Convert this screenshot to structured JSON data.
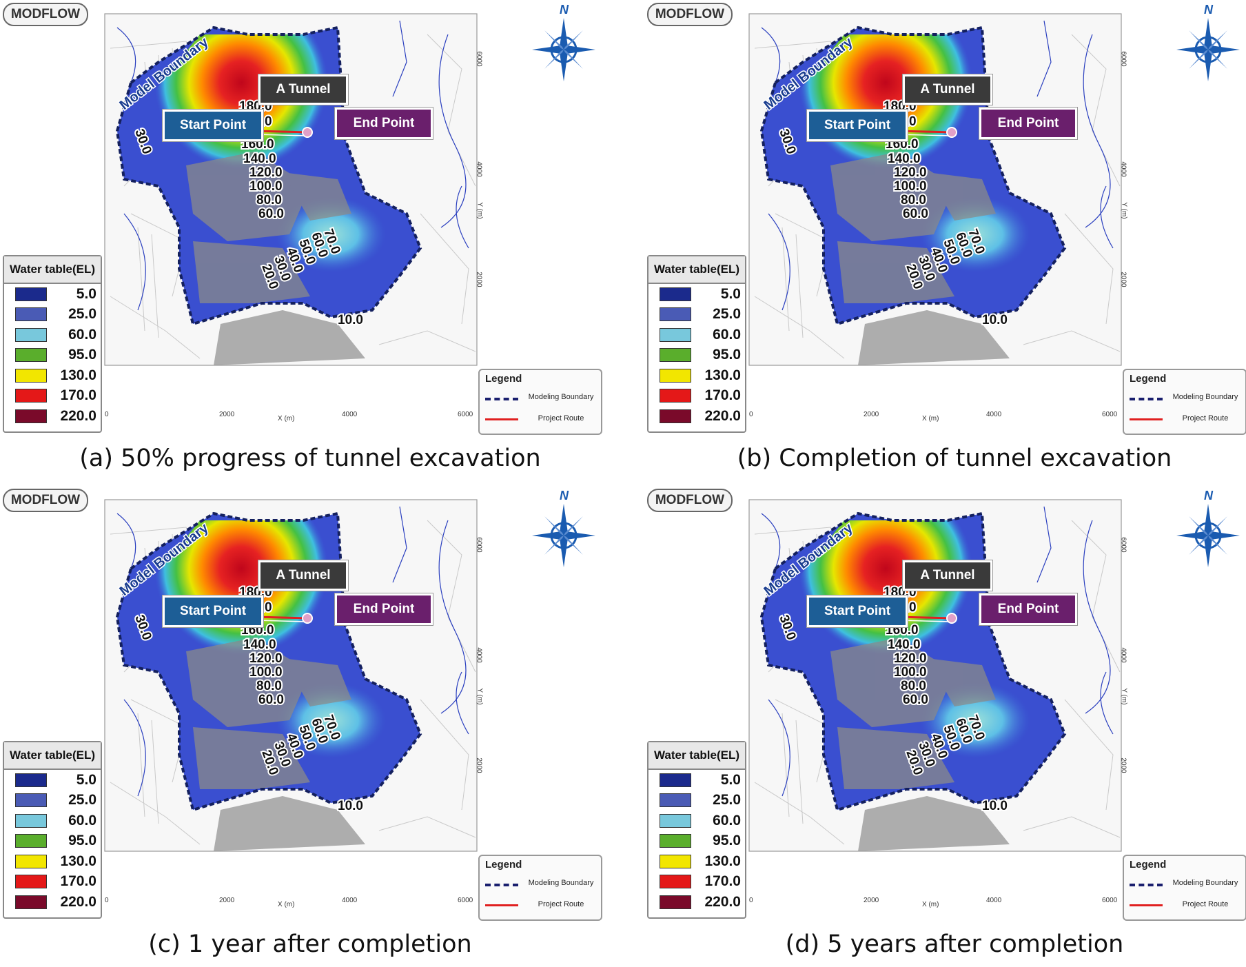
{
  "software_badge": "MODFLOW",
  "labels": {
    "tunnel": "A Tunnel",
    "start": "Start Point",
    "end": "End Point",
    "model_boundary": "Model Boundary",
    "north": "N"
  },
  "water_table": {
    "title": "Water table(EL)",
    "items": [
      {
        "value": "5.0",
        "color": "#1b2a8c"
      },
      {
        "value": "25.0",
        "color": "#4a5bb5"
      },
      {
        "value": "60.0",
        "color": "#78c8dc"
      },
      {
        "value": "95.0",
        "color": "#5aae2c"
      },
      {
        "value": "130.0",
        "color": "#f2e600"
      },
      {
        "value": "170.0",
        "color": "#e41818"
      },
      {
        "value": "220.0",
        "color": "#7a0a2a"
      }
    ]
  },
  "legend": {
    "title": "Legend",
    "boundary": "Modeling Boundary",
    "route": "Project Route"
  },
  "axes": {
    "x_ticks": [
      "0",
      "2000",
      "4000",
      "6000"
    ],
    "x_label": "X (m)",
    "y_ticks": [
      "2000",
      "4000",
      "6000"
    ],
    "y_label": "Y (m)"
  },
  "contour_labels": [
    "180.0",
    "170.0",
    "160.0",
    "140.0",
    "120.0",
    "100.0",
    "80.0",
    "60.0",
    "70.0",
    "60.0",
    "50.0",
    "40.0",
    "30.0",
    "20.0",
    "10.0",
    "30.0"
  ],
  "panels": [
    {
      "caption": "(a) 50% progress of tunnel excavation"
    },
    {
      "caption": "(b) Completion of tunnel excavation"
    },
    {
      "caption": "(c) 1 year after completion"
    },
    {
      "caption": "(d) 5 years after completion"
    }
  ]
}
